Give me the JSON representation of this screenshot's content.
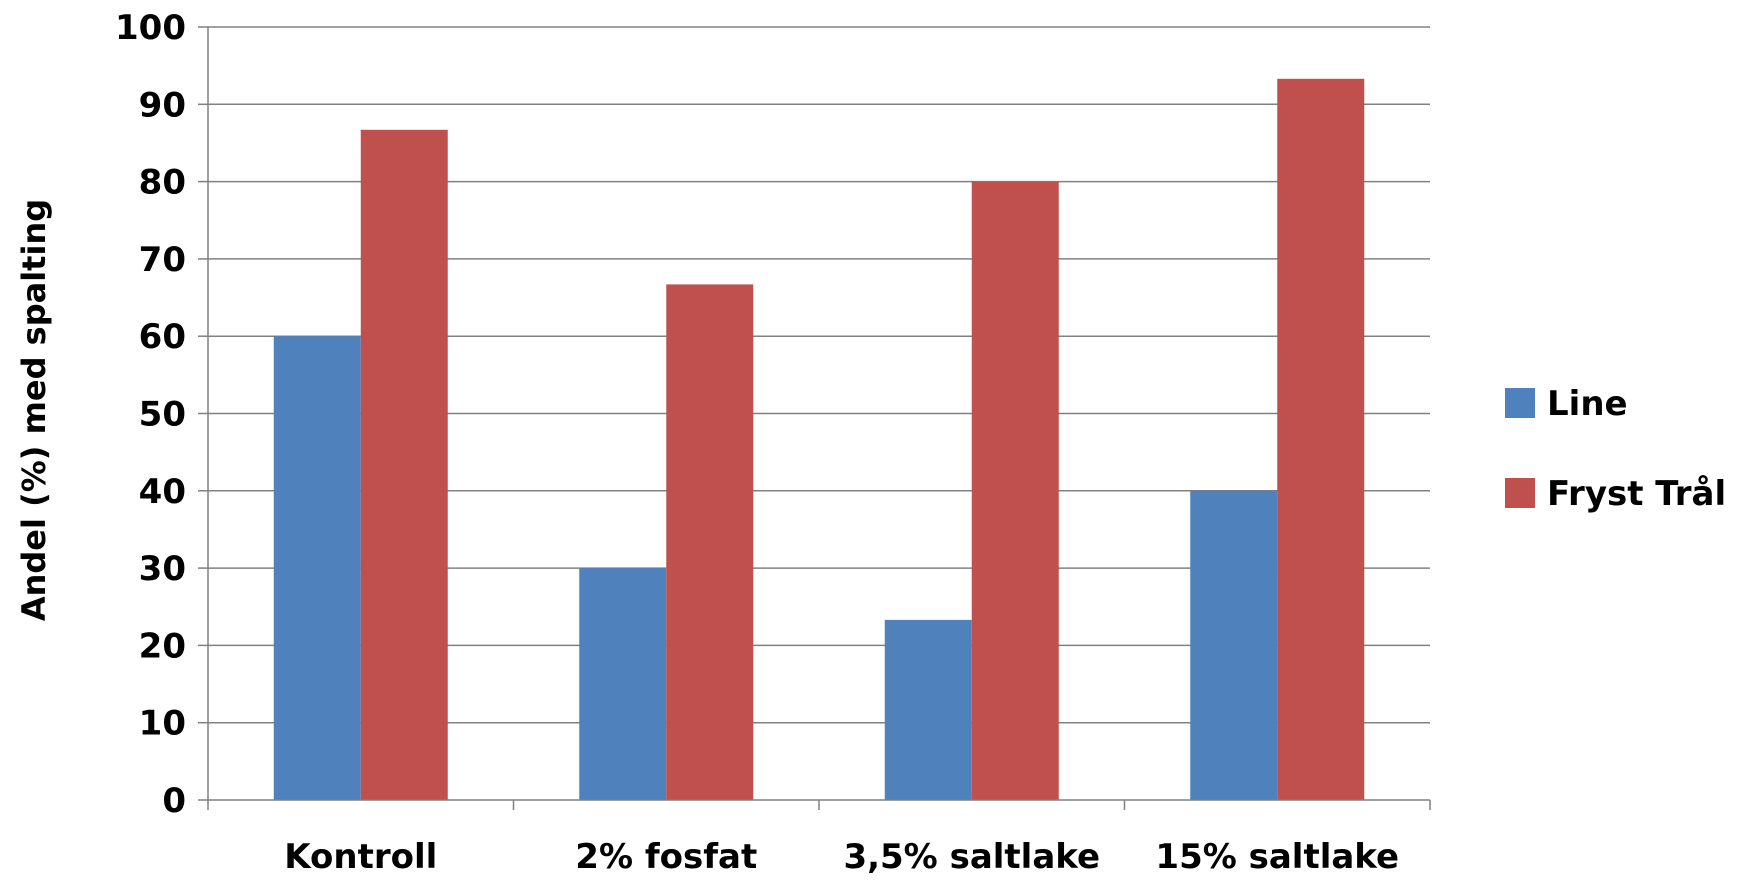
{
  "chart_data": {
    "type": "bar",
    "title": "",
    "xlabel": "",
    "ylabel": "Andel (%) med spalting",
    "ylim": [
      0,
      100
    ],
    "yticks": [
      0,
      10,
      20,
      30,
      40,
      50,
      60,
      70,
      80,
      90,
      100
    ],
    "ytick_labels": [
      "0",
      "10",
      "20",
      "30",
      "40",
      "50",
      "60",
      "70",
      "80",
      "90",
      "100"
    ],
    "categories": [
      "Kontroll",
      "2% fosfat",
      "3,5% saltlake",
      "15% saltlake"
    ],
    "series": [
      {
        "name": "Line",
        "color": "#4F81BD",
        "values": [
          60,
          30,
          23.3,
          40
        ]
      },
      {
        "name": "Fryst Trål",
        "color": "#C0504D",
        "values": [
          86.7,
          66.7,
          80,
          93.3
        ]
      }
    ],
    "grid": true,
    "legend_position": "right",
    "gridline_color": "#808080",
    "axis_color": "#808080"
  }
}
